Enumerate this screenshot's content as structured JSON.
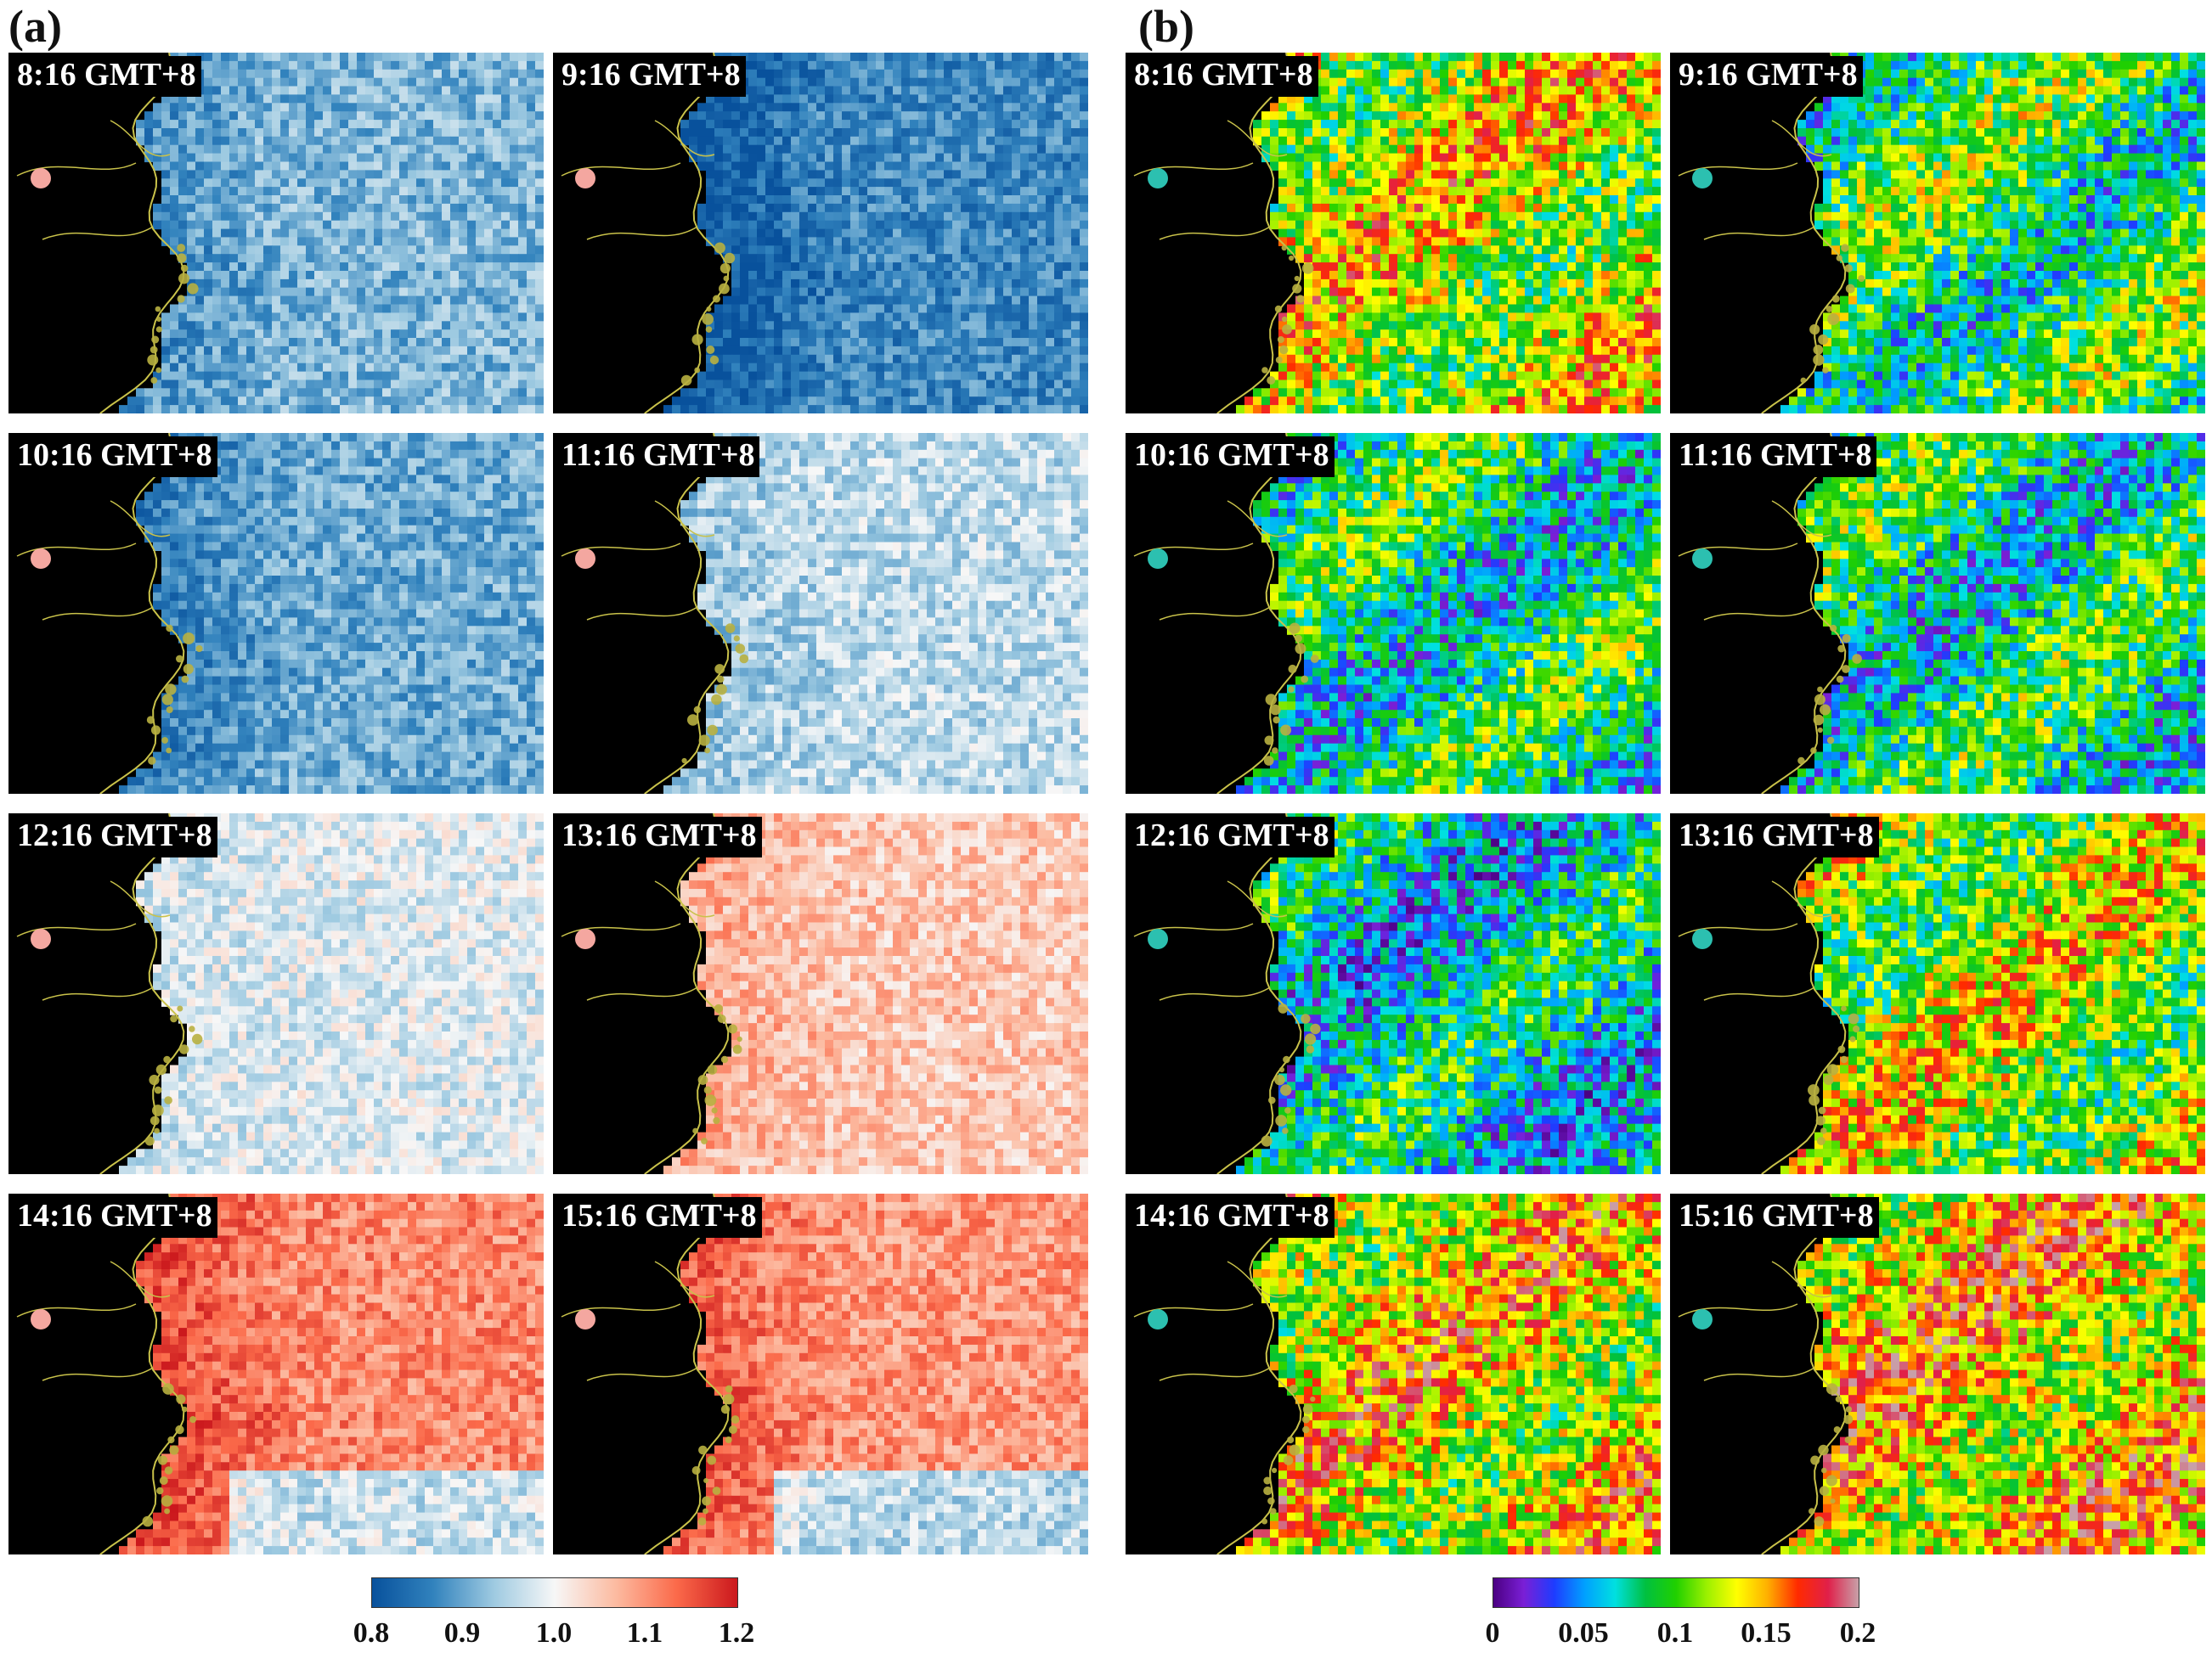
{
  "panels": [
    {
      "letter": "(a)",
      "scheme": "diverging",
      "maps": [
        {
          "label": "8:16 GMT+8",
          "base": -0.35,
          "hot": 0.0
        },
        {
          "label": "9:16 GMT+8",
          "base": -0.55,
          "hot": 0.0
        },
        {
          "label": "10:16 GMT+8",
          "base": -0.4,
          "hot": 0.0
        },
        {
          "label": "11:16 GMT+8",
          "base": -0.18,
          "hot": 0.0
        },
        {
          "label": "12:16 GMT+8",
          "base": -0.08,
          "hot": 0.0
        },
        {
          "label": "13:16 GMT+8",
          "base": 0.22,
          "hot": 0.0
        },
        {
          "label": "14:16 GMT+8",
          "base": 0.45,
          "hot": 0.0
        },
        {
          "label": "15:16 GMT+8",
          "base": 0.4,
          "hot": 0.0
        }
      ],
      "colorbar": {
        "ticks": [
          "0.8",
          "0.9",
          "1.0",
          "1.1",
          "1.2"
        ],
        "colors": [
          "#08519c",
          "#3182bd",
          "#9ecae1",
          "#f7f7f7",
          "#fcbba1",
          "#fb6a4a",
          "#cb181d"
        ]
      }
    },
    {
      "letter": "(b)",
      "scheme": "rainbow",
      "maps": [
        {
          "label": "8:16 GMT+8",
          "base": 0.62
        },
        {
          "label": "9:16 GMT+8",
          "base": 0.45
        },
        {
          "label": "10:16 GMT+8",
          "base": 0.4
        },
        {
          "label": "11:16 GMT+8",
          "base": 0.4
        },
        {
          "label": "12:16 GMT+8",
          "base": 0.34
        },
        {
          "label": "13:16 GMT+8",
          "base": 0.58
        },
        {
          "label": "14:16 GMT+8",
          "base": 0.66
        },
        {
          "label": "15:16 GMT+8",
          "base": 0.7
        }
      ],
      "colorbar": {
        "ticks": [
          "0",
          "0.05",
          "0.1",
          "0.15",
          "0.2"
        ],
        "colors": [
          "#4b0082",
          "#7a1fd6",
          "#1e3cff",
          "#00a0ff",
          "#00e0e0",
          "#00c040",
          "#20d000",
          "#9af000",
          "#ffff00",
          "#ffb000",
          "#ff2a00",
          "#e0204a",
          "#c8a0a8"
        ]
      }
    }
  ]
}
